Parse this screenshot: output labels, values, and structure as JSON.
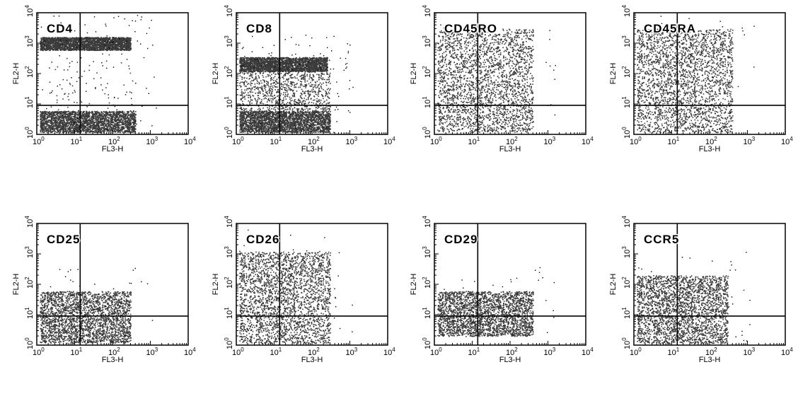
{
  "chart_data": [
    {
      "type": "scatter",
      "title": "CD4",
      "xlabel": "FL3-H",
      "ylabel": "FL2-H",
      "xscale": "log",
      "yscale": "log",
      "xlim": [
        1,
        10000
      ],
      "ylim": [
        1,
        10000
      ],
      "xticks": [
        "10",
        "10",
        "10",
        "10",
        "10"
      ],
      "xtick_exponents": [
        "0",
        "1",
        "2",
        "3",
        "4"
      ],
      "yticks": [
        "10",
        "10",
        "10",
        "10",
        "10"
      ],
      "ytick_exponents": [
        "0",
        "1",
        "2",
        "3",
        "4"
      ],
      "quadrant_lines": {
        "x": 14,
        "y": 9
      },
      "populations": [
        {
          "x": [
            1.2,
            300
          ],
          "y": [
            600,
            1600
          ],
          "density": "high"
        },
        {
          "x": [
            1.2,
            400
          ],
          "y": [
            1.2,
            6
          ],
          "density": "high"
        },
        {
          "x": [
            2,
            400
          ],
          "y": [
            6,
            600
          ],
          "density": "sparse"
        }
      ]
    },
    {
      "type": "scatter",
      "title": "CD8",
      "xlabel": "FL3-H",
      "ylabel": "FL2-H",
      "xscale": "log",
      "yscale": "log",
      "xlim": [
        1,
        10000
      ],
      "ylim": [
        1,
        10000
      ],
      "xticks": [
        "10",
        "10",
        "10",
        "10",
        "10"
      ],
      "xtick_exponents": [
        "0",
        "1",
        "2",
        "3",
        "4"
      ],
      "yticks": [
        "10",
        "10",
        "10",
        "10",
        "10"
      ],
      "ytick_exponents": [
        "0",
        "1",
        "2",
        "3",
        "4"
      ],
      "quadrant_lines": {
        "x": 14,
        "y": 9
      },
      "populations": [
        {
          "x": [
            1.2,
            250
          ],
          "y": [
            120,
            350
          ],
          "density": "high"
        },
        {
          "x": [
            1.2,
            300
          ],
          "y": [
            1.2,
            6
          ],
          "density": "high"
        },
        {
          "x": [
            1.2,
            300
          ],
          "y": [
            6,
            120
          ],
          "density": "medium"
        }
      ]
    },
    {
      "type": "scatter",
      "title": "CD45RO",
      "xlabel": "FL3-H",
      "ylabel": "FL2-H",
      "xscale": "log",
      "yscale": "log",
      "xlim": [
        1,
        10000
      ],
      "ylim": [
        1,
        10000
      ],
      "xticks": [
        "10",
        "10",
        "10",
        "10",
        "10"
      ],
      "xtick_exponents": [
        "0",
        "1",
        "2",
        "3",
        "4"
      ],
      "yticks": [
        "10",
        "10",
        "10",
        "10",
        "10"
      ],
      "ytick_exponents": [
        "0",
        "1",
        "2",
        "3",
        "4"
      ],
      "quadrant_lines": {
        "x": 14,
        "y": 9
      },
      "populations": [
        {
          "x": [
            1.2,
            400
          ],
          "y": [
            1.2,
            3000
          ],
          "density": "high"
        }
      ]
    },
    {
      "type": "scatter",
      "title": "CD45RA",
      "xlabel": "FL3-H",
      "ylabel": "FL2-H",
      "xscale": "log",
      "yscale": "log",
      "xlim": [
        1,
        10000
      ],
      "ylim": [
        1,
        10000
      ],
      "xticks": [
        "10",
        "10",
        "10",
        "10",
        "10"
      ],
      "xtick_exponents": [
        "0",
        "1",
        "2",
        "3",
        "4"
      ],
      "yticks": [
        "10",
        "10",
        "10",
        "10",
        "10"
      ],
      "ytick_exponents": [
        "0",
        "1",
        "2",
        "3",
        "4"
      ],
      "quadrant_lines": {
        "x": 14,
        "y": 9
      },
      "populations": [
        {
          "x": [
            1.2,
            400
          ],
          "y": [
            1.2,
            3000
          ],
          "density": "high"
        }
      ]
    },
    {
      "type": "scatter",
      "title": "CD25",
      "xlabel": "FL3-H",
      "ylabel": "FL2-H",
      "xscale": "log",
      "yscale": "log",
      "xlim": [
        1,
        10000
      ],
      "ylim": [
        1,
        10000
      ],
      "xticks": [
        "10",
        "10",
        "10",
        "10",
        "10"
      ],
      "xtick_exponents": [
        "0",
        "1",
        "2",
        "3",
        "4"
      ],
      "yticks": [
        "10",
        "10",
        "10",
        "10",
        "10"
      ],
      "ytick_exponents": [
        "0",
        "1",
        "2",
        "3",
        "4"
      ],
      "quadrant_lines": {
        "x": 14,
        "y": 9
      },
      "populations": [
        {
          "x": [
            1.2,
            300
          ],
          "y": [
            1.2,
            60
          ],
          "density": "high"
        }
      ]
    },
    {
      "type": "scatter",
      "title": "CD26",
      "xlabel": "FL3-H",
      "ylabel": "FL2-H",
      "xscale": "log",
      "yscale": "log",
      "xlim": [
        1,
        10000
      ],
      "ylim": [
        1,
        10000
      ],
      "xticks": [
        "10",
        "10",
        "10",
        "10",
        "10"
      ],
      "xtick_exponents": [
        "0",
        "1",
        "2",
        "3",
        "4"
      ],
      "yticks": [
        "10",
        "10",
        "10",
        "10",
        "10"
      ],
      "ytick_exponents": [
        "0",
        "1",
        "2",
        "3",
        "4"
      ],
      "quadrant_lines": {
        "x": 14,
        "y": 9
      },
      "populations": [
        {
          "x": [
            1.2,
            300
          ],
          "y": [
            1.2,
            1200
          ],
          "density": "high"
        }
      ]
    },
    {
      "type": "scatter",
      "title": "CD29",
      "xlabel": "FL3-H",
      "ylabel": "FL2-H",
      "xscale": "log",
      "yscale": "log",
      "xlim": [
        1,
        10000
      ],
      "ylim": [
        1,
        10000
      ],
      "xticks": [
        "10",
        "10",
        "10",
        "10",
        "10"
      ],
      "xtick_exponents": [
        "0",
        "1",
        "2",
        "3",
        "4"
      ],
      "yticks": [
        "10",
        "10",
        "10",
        "10",
        "10"
      ],
      "ytick_exponents": [
        "0",
        "1",
        "2",
        "3",
        "4"
      ],
      "quadrant_lines": {
        "x": 14,
        "y": 9
      },
      "populations": [
        {
          "x": [
            1.2,
            400
          ],
          "y": [
            2,
            60
          ],
          "density": "high"
        }
      ]
    },
    {
      "type": "scatter",
      "title": "CCR5",
      "xlabel": "FL3-H",
      "ylabel": "FL2-H",
      "xscale": "log",
      "yscale": "log",
      "xlim": [
        1,
        10000
      ],
      "ylim": [
        1,
        10000
      ],
      "xticks": [
        "10",
        "10",
        "10",
        "10",
        "10"
      ],
      "xtick_exponents": [
        "0",
        "1",
        "2",
        "3",
        "4"
      ],
      "yticks": [
        "10",
        "10",
        "10",
        "10",
        "10"
      ],
      "ytick_exponents": [
        "0",
        "1",
        "2",
        "3",
        "4"
      ],
      "quadrant_lines": {
        "x": 14,
        "y": 9
      },
      "populations": [
        {
          "x": [
            1.2,
            300
          ],
          "y": [
            1.2,
            200
          ],
          "density": "high"
        }
      ]
    }
  ],
  "colors": {
    "dot": "#3a3a3a",
    "axis": "#000000",
    "background": "#ffffff"
  }
}
